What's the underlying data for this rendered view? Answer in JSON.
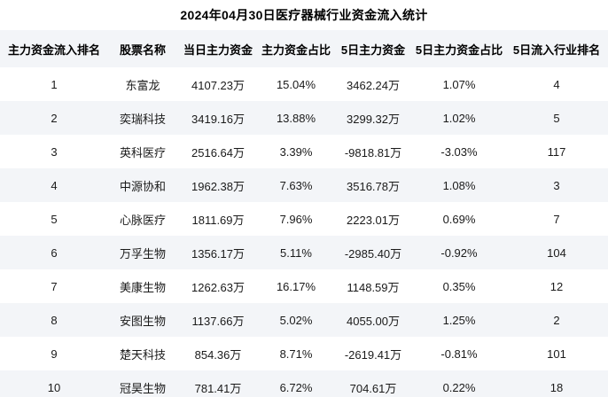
{
  "title": "2024年04月30日医疗器械行业资金流入统计",
  "colors": {
    "page_bg": "#ffffff",
    "header_bg": "#f3f5f8",
    "alt_row_bg": "#f3f5f8",
    "text": "#1a1a1a",
    "title_text": "#000000"
  },
  "chart_data": {
    "type": "table",
    "title": "2024年04月30日医疗器械行业资金流入统计",
    "columns": [
      "主力资金流入排名",
      "股票名称",
      "当日主力资金",
      "主力资金占比",
      "5日主力资金",
      "5日主力资金占比",
      "5日流入行业排名"
    ],
    "rows": [
      [
        "1",
        "东富龙",
        "4107.23万",
        "15.04%",
        "3462.24万",
        "1.07%",
        "4"
      ],
      [
        "2",
        "奕瑞科技",
        "3419.16万",
        "13.88%",
        "3299.32万",
        "1.02%",
        "5"
      ],
      [
        "3",
        "英科医疗",
        "2516.64万",
        "3.39%",
        "-9818.81万",
        "-3.03%",
        "117"
      ],
      [
        "4",
        "中源协和",
        "1962.38万",
        "7.63%",
        "3516.78万",
        "1.08%",
        "3"
      ],
      [
        "5",
        "心脉医疗",
        "1811.69万",
        "7.96%",
        "2223.01万",
        "0.69%",
        "7"
      ],
      [
        "6",
        "万孚生物",
        "1356.17万",
        "5.11%",
        "-2985.40万",
        "-0.92%",
        "104"
      ],
      [
        "7",
        "美康生物",
        "1262.63万",
        "16.17%",
        "1148.59万",
        "0.35%",
        "12"
      ],
      [
        "8",
        "安图生物",
        "1137.66万",
        "5.02%",
        "4055.00万",
        "1.25%",
        "2"
      ],
      [
        "9",
        "楚天科技",
        "854.36万",
        "8.71%",
        "-2619.41万",
        "-0.81%",
        "101"
      ],
      [
        "10",
        "冠昊生物",
        "781.41万",
        "6.72%",
        "704.61万",
        "0.22%",
        "18"
      ]
    ]
  }
}
